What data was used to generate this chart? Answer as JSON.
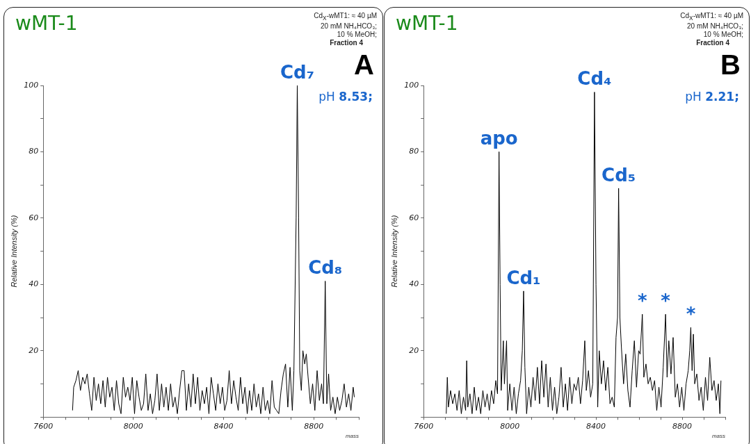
{
  "chart_data": [
    {
      "type": "line",
      "title": "wMT-1",
      "xlabel": "mass",
      "ylabel": "Relative Intensity (%)",
      "color": "#000000",
      "marker": "none",
      "grid": false,
      "legend": false,
      "xlim": [
        7600,
        9000
      ],
      "xticks": [
        7600,
        {
          "value": 7700,
          "label": null
        },
        {
          "value": 7800,
          "label": null
        },
        {
          "value": 7900,
          "label": null
        },
        8000,
        {
          "value": 8100,
          "label": null
        },
        {
          "value": 8200,
          "label": null
        },
        {
          "value": 8300,
          "label": null
        },
        8400,
        {
          "value": 8500,
          "label": null
        },
        {
          "value": 8600,
          "label": null
        },
        {
          "value": 8700,
          "label": null
        },
        8800,
        {
          "value": 8900,
          "label": null
        },
        {
          "value": 9000,
          "label": null
        }
      ],
      "ylim": [
        0,
        100
      ],
      "yticks": [
        {
          "value": 0,
          "label": null
        },
        {
          "value": 10,
          "label": null
        },
        20,
        {
          "value": 30,
          "label": null
        },
        40,
        {
          "value": 50,
          "label": null
        },
        60,
        {
          "value": 70,
          "label": null
        },
        80,
        {
          "value": 90,
          "label": null
        },
        100
      ],
      "annotations": [
        "Cd$_{X}$-wMT1: ≈ 40 µM",
        "20 mM NH₄HCO₃;",
        "10 % MeOH;",
        "Fraction 4",
        "A",
        "pH 8.53;",
        {
          "text": "Cd₇",
          "x": 8727,
          "y": 100
        },
        {
          "text": "Cd₈",
          "x": 8851,
          "y": 41
        }
      ],
      "x": [
        7730,
        7735,
        7745,
        7755,
        7765,
        7775,
        7785,
        7795,
        7805,
        7815,
        7825,
        7835,
        7845,
        7855,
        7865,
        7875,
        7885,
        7895,
        7905,
        7915,
        7925,
        7935,
        7945,
        7955,
        7965,
        7975,
        7985,
        7995,
        8005,
        8015,
        8025,
        8035,
        8045,
        8055,
        8065,
        8075,
        8085,
        8095,
        8105,
        8115,
        8125,
        8135,
        8145,
        8155,
        8165,
        8175,
        8185,
        8195,
        8205,
        8215,
        8225,
        8235,
        8245,
        8255,
        8265,
        8275,
        8285,
        8295,
        8305,
        8315,
        8325,
        8335,
        8345,
        8355,
        8365,
        8375,
        8385,
        8395,
        8405,
        8415,
        8425,
        8435,
        8445,
        8455,
        8465,
        8475,
        8485,
        8495,
        8505,
        8515,
        8525,
        8535,
        8545,
        8555,
        8565,
        8575,
        8585,
        8595,
        8605,
        8615,
        8625,
        8635,
        8645,
        8655,
        8665,
        8675,
        8685,
        8695,
        8705,
        8712,
        8722,
        8727,
        8733,
        8738,
        8745,
        8752,
        8760,
        8767,
        8775,
        8785,
        8795,
        8805,
        8815,
        8825,
        8835,
        8843,
        8851,
        8858,
        8866,
        8875,
        8885,
        8895,
        8905,
        8915,
        8925,
        8935,
        8945,
        8955,
        8965,
        8975,
        8980
      ],
      "values": [
        2,
        9,
        11,
        14,
        8,
        12,
        10,
        13,
        7,
        2,
        12,
        5,
        10,
        4,
        11,
        3,
        12,
        6,
        9,
        2,
        11,
        4,
        1,
        12,
        6,
        9,
        5,
        12,
        1,
        11,
        6,
        2,
        4,
        13,
        2,
        7,
        1,
        5,
        13,
        2,
        10,
        3,
        9,
        2,
        10,
        3,
        6,
        1,
        8,
        14,
        14,
        2,
        10,
        3,
        13,
        4,
        12,
        2,
        8,
        4,
        9,
        1,
        12,
        7,
        2,
        10,
        4,
        9,
        2,
        5,
        14,
        4,
        11,
        6,
        2,
        12,
        4,
        9,
        1,
        8,
        2,
        10,
        3,
        7,
        1,
        9,
        2,
        5,
        1,
        11,
        3,
        2,
        1,
        8,
        13,
        16,
        3,
        15,
        2,
        14,
        60,
        100,
        60,
        14,
        8,
        20,
        16,
        19,
        12,
        4,
        10,
        2,
        14,
        5,
        10,
        4,
        41,
        4,
        13,
        2,
        6,
        1,
        6,
        2,
        5,
        10,
        3,
        7,
        2,
        9,
        6
      ]
    },
    {
      "type": "line",
      "title": "wMT-1",
      "xlabel": "mass",
      "ylabel": "Relative Intensity (%)",
      "color": "#000000",
      "marker": "none",
      "grid": false,
      "legend": false,
      "xlim": [
        7600,
        9000
      ],
      "xticks": [
        7600,
        {
          "value": 7700,
          "label": null
        },
        {
          "value": 7800,
          "label": null
        },
        {
          "value": 7900,
          "label": null
        },
        8000,
        {
          "value": 8100,
          "label": null
        },
        {
          "value": 8200,
          "label": null
        },
        {
          "value": 8300,
          "label": null
        },
        8400,
        {
          "value": 8500,
          "label": null
        },
        {
          "value": 8600,
          "label": null
        },
        {
          "value": 8700,
          "label": null
        },
        8800,
        {
          "value": 8900,
          "label": null
        },
        {
          "value": 9000,
          "label": null
        }
      ],
      "ylim": [
        0,
        100
      ],
      "yticks": [
        {
          "value": 0,
          "label": null
        },
        {
          "value": 10,
          "label": null
        },
        20,
        {
          "value": 30,
          "label": null
        },
        40,
        {
          "value": 50,
          "label": null
        },
        60,
        {
          "value": 70,
          "label": null
        },
        80,
        {
          "value": 90,
          "label": null
        },
        100
      ],
      "annotations": [
        "Cd$_{X}$-wMT1: ≈ 40 µM",
        "20 mM NH₄HCO₃;",
        "10 % MeOH;",
        "Fraction 4",
        "B",
        "pH 2.21;",
        {
          "text": "apo",
          "x": 7950,
          "y": 80
        },
        {
          "text": "Cd₁",
          "x": 8064,
          "y": 38
        },
        {
          "text": "Cd₄",
          "x": 8393,
          "y": 98
        },
        {
          "text": "Cd₅",
          "x": 8505,
          "y": 69
        },
        {
          "text": "*",
          "x": 8615,
          "y": 31
        },
        {
          "text": "*",
          "x": 8723,
          "y": 31
        },
        {
          "text": "*",
          "x": 8840,
          "y": 27
        }
      ],
      "x": [
        7705,
        7710,
        7715,
        7725,
        7735,
        7745,
        7755,
        7765,
        7775,
        7785,
        7795,
        7800,
        7805,
        7815,
        7825,
        7835,
        7845,
        7855,
        7865,
        7875,
        7885,
        7895,
        7905,
        7915,
        7925,
        7935,
        7943,
        7950,
        7955,
        7960,
        7970,
        7975,
        7985,
        7990,
        8000,
        8010,
        8020,
        8030,
        8040,
        8050,
        8058,
        8064,
        8070,
        8078,
        8088,
        8098,
        8108,
        8118,
        8128,
        8138,
        8148,
        8158,
        8168,
        8178,
        8188,
        8198,
        8208,
        8218,
        8228,
        8238,
        8248,
        8258,
        8268,
        8278,
        8288,
        8298,
        8308,
        8318,
        8328,
        8338,
        8348,
        8355,
        8365,
        8375,
        8385,
        8393,
        8400,
        8408,
        8415,
        8425,
        8435,
        8445,
        8455,
        8465,
        8475,
        8485,
        8493,
        8500,
        8505,
        8511,
        8518,
        8528,
        8538,
        8548,
        8558,
        8568,
        8578,
        8588,
        8598,
        8605,
        8615,
        8622,
        8632,
        8642,
        8652,
        8662,
        8672,
        8682,
        8692,
        8702,
        8712,
        8723,
        8730,
        8738,
        8748,
        8758,
        8768,
        8778,
        8788,
        8798,
        8808,
        8818,
        8828,
        8835,
        8840,
        8846,
        8852,
        8858,
        8868,
        8878,
        8888,
        8898,
        8908,
        8918,
        8928,
        8938,
        8948,
        8958,
        8968,
        8975,
        8980
      ],
      "values": [
        1,
        12,
        3,
        8,
        4,
        7,
        2,
        8,
        1,
        6,
        2,
        17,
        3,
        7,
        1,
        9,
        2,
        6,
        1,
        8,
        3,
        7,
        2,
        8,
        4,
        11,
        7,
        80,
        40,
        8,
        23,
        10,
        23,
        2,
        10,
        2,
        9,
        1,
        7,
        11,
        20,
        38,
        15,
        1,
        9,
        3,
        12,
        5,
        15,
        4,
        17,
        6,
        16,
        3,
        12,
        2,
        9,
        1,
        6,
        15,
        3,
        10,
        2,
        12,
        4,
        10,
        8,
        12,
        4,
        11,
        23,
        8,
        14,
        6,
        10,
        98,
        40,
        3,
        20,
        10,
        17,
        8,
        15,
        4,
        6,
        3,
        24,
        30,
        69,
        30,
        21,
        10,
        19,
        8,
        3,
        14,
        23,
        9,
        20,
        19,
        31,
        12,
        16,
        10,
        12,
        8,
        11,
        2,
        9,
        3,
        15,
        31,
        12,
        23,
        13,
        24,
        6,
        10,
        3,
        9,
        2,
        10,
        14,
        20,
        27,
        14,
        25,
        10,
        13,
        5,
        9,
        2,
        12,
        5,
        18,
        8,
        11,
        5,
        10,
        1,
        11
      ]
    }
  ]
}
